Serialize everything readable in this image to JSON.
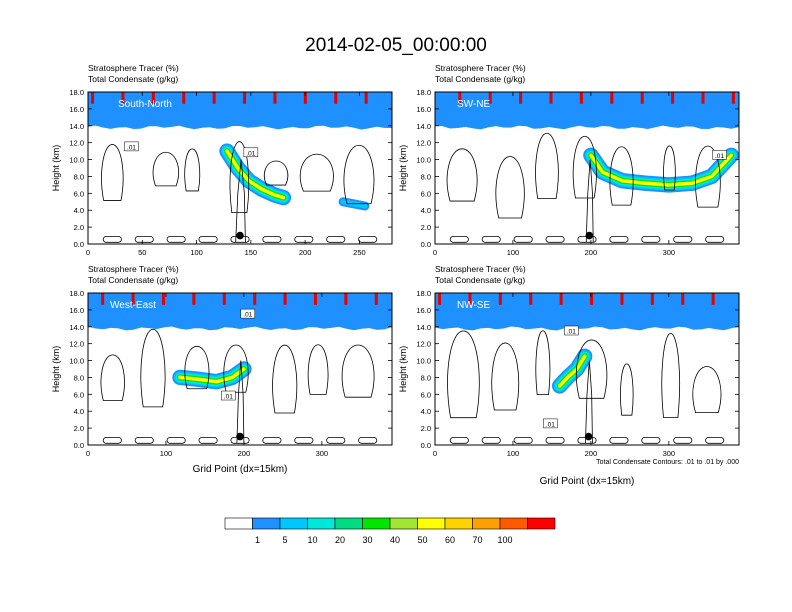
{
  "title": "2014-02-05_00:00:00",
  "field_label": "Stratosphere Tracer   (%)",
  "contour_label": "Total Condensate   (g/kg)",
  "contour_note": "Total Condensate Contours: .01 to .01 by .000",
  "xlabel": "Grid Point (dx=15km)",
  "ylabel": "Height (km)",
  "contour_value_label": ".01",
  "colorbar": {
    "colors": [
      "#ffffff",
      "#1e90ff",
      "#00c8ff",
      "#00e8d8",
      "#00dc82",
      "#00e600",
      "#a0e632",
      "#ffff00",
      "#ffd200",
      "#ffa000",
      "#ff5a00",
      "#ff0000"
    ],
    "labels": [
      "1",
      "5",
      "10",
      "20",
      "30",
      "40",
      "50",
      "60",
      "70",
      "100"
    ]
  },
  "chart_data": [
    {
      "type": "heatmap",
      "panel_label": "South-North",
      "xlim": [
        0,
        280
      ],
      "ylim": [
        0,
        18
      ],
      "xticks": [
        0,
        50,
        100,
        150,
        200,
        250
      ],
      "yticks": [
        "0.0",
        "2.0",
        "4.0",
        "6.0",
        "8.0",
        "10.0",
        "12.0",
        "14.0",
        "16.0",
        "18.0"
      ],
      "marker": [
        140,
        1
      ],
      "tracer_plume": {
        "x": [
          128,
          138,
          148,
          160,
          172,
          180
        ],
        "y": [
          11.0,
          9.0,
          7.5,
          6.5,
          5.8,
          5.5
        ]
      },
      "blob": {
        "x": [
          235,
          255
        ],
        "y": [
          5.0,
          4.5
        ]
      },
      "contour_label_positions": [
        [
          40,
          11.5
        ],
        [
          150,
          10.8
        ]
      ]
    },
    {
      "type": "heatmap",
      "panel_label": "SW-NE",
      "xlim": [
        0,
        390
      ],
      "ylim": [
        0,
        18
      ],
      "xticks": [
        0,
        100,
        200,
        300
      ],
      "yticks": [
        "0.0",
        "2.0",
        "4.0",
        "6.0",
        "8.0",
        "10.0",
        "12.0",
        "14.0",
        "16.0",
        "18.0"
      ],
      "marker": [
        198,
        1
      ],
      "tracer_plume": {
        "x": [
          200,
          215,
          240,
          270,
          300,
          330,
          355,
          380
        ],
        "y": [
          10.5,
          8.5,
          7.5,
          7.2,
          7.0,
          7.2,
          8.0,
          10.5
        ]
      },
      "contour_label_positions": [
        [
          365,
          10.5
        ]
      ]
    },
    {
      "type": "heatmap",
      "panel_label": "West-East",
      "xlim": [
        0,
        390
      ],
      "ylim": [
        0,
        18
      ],
      "xticks": [
        0,
        100,
        200,
        300
      ],
      "yticks": [
        "0.0",
        "2.0",
        "4.0",
        "6.0",
        "8.0",
        "10.0",
        "12.0",
        "14.0",
        "16.0",
        "18.0"
      ],
      "marker": [
        195,
        1
      ],
      "tracer_plume": {
        "x": [
          118,
          140,
          165,
          185,
          200
        ],
        "y": [
          8.0,
          7.8,
          7.5,
          8.0,
          9.0
        ]
      },
      "contour_label_positions": [
        [
          205,
          15.5
        ],
        [
          180,
          5.8
        ]
      ]
    },
    {
      "type": "heatmap",
      "panel_label": "NW-SE",
      "xlim": [
        0,
        390
      ],
      "ylim": [
        0,
        18
      ],
      "xticks": [
        0,
        100,
        200,
        300
      ],
      "yticks": [
        "0.0",
        "2.0",
        "4.0",
        "6.0",
        "8.0",
        "10.0",
        "12.0",
        "14.0",
        "16.0",
        "18.0"
      ],
      "marker": [
        197,
        1
      ],
      "tracer_plume": {
        "x": [
          160,
          170,
          182,
          192
        ],
        "y": [
          7.0,
          8.0,
          9.0,
          10.5
        ]
      },
      "contour_label_positions": [
        [
          175,
          13.5
        ],
        [
          148,
          2.5
        ]
      ]
    }
  ]
}
